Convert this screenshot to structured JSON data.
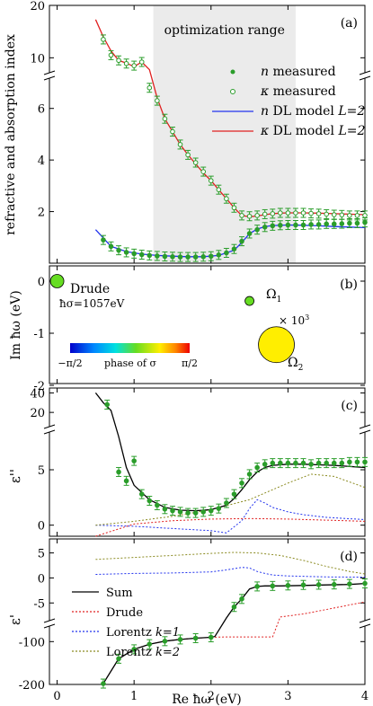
{
  "chart_data": [
    {
      "panel": "(a)",
      "type": "line",
      "ylabel": "refractive and absorption index",
      "annotation": "optimization range",
      "optimization_range_x": [
        1.25,
        3.1
      ],
      "xlim": [
        -0.1,
        4
      ],
      "ylim_upper": [
        8,
        20
      ],
      "ylim_lower": [
        0,
        7
      ],
      "y_ticks_upper": [
        "10",
        "20"
      ],
      "y_ticks_lower": [
        "2",
        "4",
        "6"
      ],
      "legend": {
        "placement": "right",
        "entries": [
          "n measured",
          "κ measured",
          "n DL model L=2",
          "κ DL model L=2"
        ]
      },
      "legend_parts": [
        {
          "sym": "n",
          "text": "measured"
        },
        {
          "sym": "κ",
          "text": "measured"
        },
        {
          "sym": "n",
          "text": "DL model",
          "sub": "L=2"
        },
        {
          "sym": "κ",
          "text": "DL model",
          "sub": "L=2"
        }
      ],
      "series": [
        {
          "name": "n measured",
          "color": "#2a9d2a",
          "x": [
            0.6,
            0.7,
            0.8,
            0.9,
            1.0,
            1.1,
            1.2,
            1.3,
            1.4,
            1.5,
            1.6,
            1.7,
            1.8,
            1.9,
            2.0,
            2.1,
            2.2,
            2.3,
            2.4,
            2.5,
            2.6,
            2.7,
            2.8,
            2.9,
            3.0,
            3.1,
            3.2,
            3.3,
            3.4,
            3.5,
            3.6,
            3.7,
            3.8,
            3.9,
            4.0
          ],
          "y": [
            0.9,
            0.65,
            0.5,
            0.42,
            0.37,
            0.33,
            0.3,
            0.28,
            0.26,
            0.25,
            0.24,
            0.24,
            0.24,
            0.25,
            0.27,
            0.32,
            0.4,
            0.55,
            0.85,
            1.15,
            1.3,
            1.4,
            1.45,
            1.47,
            1.48,
            1.48,
            1.48,
            1.5,
            1.5,
            1.52,
            1.52,
            1.53,
            1.55,
            1.55,
            1.58
          ]
        },
        {
          "name": "κ measured",
          "color": "#2a9d2a",
          "x": [
            0.6,
            0.7,
            0.8,
            0.9,
            1.0,
            1.1,
            1.2,
            1.3,
            1.4,
            1.5,
            1.6,
            1.7,
            1.8,
            1.9,
            2.0,
            2.1,
            2.2,
            2.3,
            2.4,
            2.5,
            2.6,
            2.7,
            2.8,
            2.9,
            3.0,
            3.1,
            3.2,
            3.3,
            3.4,
            3.5,
            3.6,
            3.7,
            3.8,
            3.9,
            4.0
          ],
          "y": [
            13.5,
            10.5,
            9.5,
            8.9,
            8.5,
            7.8,
            6.8,
            6.3,
            5.6,
            5.1,
            4.6,
            4.2,
            3.9,
            3.55,
            3.2,
            2.85,
            2.5,
            2.15,
            1.85,
            1.82,
            1.85,
            1.9,
            1.92,
            1.95,
            1.95,
            1.95,
            1.95,
            1.93,
            1.92,
            1.9,
            1.88,
            1.87,
            1.85,
            1.85,
            1.85
          ]
        },
        {
          "name": "n DL model L=2",
          "color": "#2233ee",
          "x": [
            0.5,
            0.7,
            0.9,
            1.1,
            1.3,
            1.5,
            1.7,
            1.9,
            2.1,
            2.3,
            2.4,
            2.5,
            2.6,
            2.7,
            2.8,
            3.0,
            3.2,
            3.4,
            3.6,
            3.8,
            4.0
          ],
          "y": [
            1.3,
            0.65,
            0.45,
            0.35,
            0.3,
            0.27,
            0.25,
            0.25,
            0.3,
            0.5,
            0.8,
            1.15,
            1.32,
            1.42,
            1.46,
            1.48,
            1.47,
            1.45,
            1.42,
            1.4,
            1.38
          ]
        },
        {
          "name": "κ DL model L=2",
          "color": "#e02020",
          "x": [
            0.5,
            0.6,
            0.7,
            0.8,
            0.9,
            1.0,
            1.1,
            1.2,
            1.3,
            1.4,
            1.5,
            1.6,
            1.7,
            1.8,
            1.9,
            2.0,
            2.1,
            2.2,
            2.3,
            2.4,
            2.5,
            2.6,
            2.7,
            2.8,
            2.9,
            3.0,
            3.2,
            3.4,
            3.6,
            3.8,
            4.0
          ],
          "y": [
            17.3,
            14.0,
            11.3,
            9.5,
            9.0,
            8.3,
            7.8,
            7.5,
            6.4,
            5.6,
            5.1,
            4.6,
            4.2,
            3.85,
            3.5,
            3.2,
            2.85,
            2.5,
            2.15,
            1.85,
            1.8,
            1.83,
            1.88,
            1.92,
            1.94,
            1.95,
            1.95,
            1.94,
            1.92,
            1.9,
            1.88
          ]
        }
      ]
    },
    {
      "panel": "(b)",
      "type": "scatter",
      "ylabel": "Im ħω (eV)",
      "xlim": [
        -0.1,
        4
      ],
      "ylim": [
        -2,
        0.35
      ],
      "y_ticks": [
        "0",
        "-1",
        "-2"
      ],
      "labels": {
        "drude": "Drude",
        "drude_sigma": "ħσ=1057eV",
        "omega1": "Ω",
        "omega1_sub": "1",
        "omega2": "Ω",
        "omega2_sub": "2",
        "scale": "× 10",
        "scale_exp": "3"
      },
      "colorbar": {
        "min_label": "−π/2",
        "title": "phase of σ",
        "max_label": "π/2"
      },
      "points": [
        {
          "name": "Drude",
          "x": 0.0,
          "y": 0.0,
          "color": "#66dd22",
          "size": 0.35
        },
        {
          "name": "Ω1",
          "x": 2.5,
          "y": -0.38,
          "color": "#66dd22",
          "size": 0.25
        },
        {
          "name": "Ω2",
          "x": 2.85,
          "y": -1.22,
          "color": "#ffee00",
          "size": 1.0
        }
      ]
    },
    {
      "panel": "(c)",
      "type": "line",
      "ylabel": "ε''",
      "xlim": [
        -0.1,
        4
      ],
      "ylim_upper": [
        10,
        45
      ],
      "ylim_lower": [
        -1,
        8
      ],
      "y_ticks_upper": [
        "20",
        "40"
      ],
      "y_ticks_lower": [
        "0",
        "5"
      ],
      "series": [
        {
          "name": "measured",
          "color": "#2a9d2a",
          "x": [
            0.65,
            0.8,
            0.9,
            1.0,
            1.1,
            1.2,
            1.3,
            1.4,
            1.5,
            1.6,
            1.7,
            1.8,
            1.9,
            2.0,
            2.1,
            2.2,
            2.3,
            2.4,
            2.5,
            2.6,
            2.7,
            2.8,
            2.9,
            3.0,
            3.1,
            3.2,
            3.3,
            3.4,
            3.5,
            3.6,
            3.7,
            3.8,
            3.9,
            4.0
          ],
          "y": [
            28,
            4.8,
            4.0,
            5.8,
            2.8,
            2.2,
            1.8,
            1.45,
            1.3,
            1.2,
            1.1,
            1.1,
            1.2,
            1.3,
            1.5,
            2.0,
            2.8,
            3.8,
            4.6,
            5.2,
            5.5,
            5.6,
            5.6,
            5.6,
            5.6,
            5.6,
            5.5,
            5.6,
            5.6,
            5.6,
            5.6,
            5.7,
            5.7,
            5.7
          ]
        },
        {
          "name": "Sum",
          "color": "#000000",
          "x": [
            0.5,
            0.6,
            0.7,
            0.8,
            0.9,
            1.0,
            1.2,
            1.4,
            1.6,
            1.8,
            2.0,
            2.2,
            2.3,
            2.4,
            2.5,
            2.6,
            2.7,
            2.8,
            3.0,
            3.2,
            3.4,
            3.6,
            3.8,
            4.0
          ],
          "y": [
            40,
            30,
            22,
            8,
            5.2,
            3.6,
            2.3,
            1.6,
            1.35,
            1.3,
            1.4,
            1.8,
            2.4,
            3.2,
            4.1,
            4.8,
            5.2,
            5.4,
            5.5,
            5.5,
            5.45,
            5.4,
            5.3,
            5.2
          ]
        },
        {
          "name": "Drude",
          "color": "#e02020",
          "x": [
            0.5,
            1.0,
            1.5,
            2.0,
            2.5,
            3.0,
            3.5,
            4.0
          ],
          "y": [
            -1,
            0.1,
            0.4,
            0.55,
            0.6,
            0.55,
            0.45,
            0.35
          ]
        },
        {
          "name": "Lorentz k=1",
          "color": "#2233ee",
          "x": [
            0.5,
            1.0,
            1.5,
            2.0,
            2.2,
            2.4,
            2.5,
            2.6,
            2.7,
            2.8,
            3.0,
            3.2,
            3.5,
            4.0
          ],
          "y": [
            0.0,
            -0.1,
            -0.3,
            -0.5,
            -0.7,
            0.4,
            1.5,
            2.3,
            2.0,
            1.6,
            1.2,
            0.95,
            0.7,
            0.5
          ]
        },
        {
          "name": "Lorentz k=2",
          "color": "#8b8b22",
          "x": [
            0.5,
            1.0,
            1.5,
            2.0,
            2.5,
            3.0,
            3.3,
            3.6,
            4.0
          ],
          "y": [
            0.0,
            0.35,
            0.8,
            1.4,
            2.3,
            3.8,
            4.6,
            4.4,
            3.4
          ]
        }
      ]
    },
    {
      "panel": "(d)",
      "type": "line",
      "ylabel": "ε'",
      "xlabel": "Re ħω (eV)",
      "xlim": [
        -0.1,
        4
      ],
      "x_ticks": [
        "0",
        "1",
        "2",
        "3",
        "4"
      ],
      "ylim_upper": [
        -8,
        6
      ],
      "ylim_lower": [
        -200,
        -70
      ],
      "y_ticks_upper": [
        "5",
        "0",
        "-5"
      ],
      "y_ticks_lower": [
        "-100",
        "-200"
      ],
      "legend": {
        "placement": "bottom-left",
        "entries": [
          "Sum",
          "Drude",
          "Lorentz k=1",
          "Lorentz k=2"
        ]
      },
      "legend_parts": [
        {
          "text": "Sum"
        },
        {
          "text": "Drude"
        },
        {
          "text": "Lorentz",
          "sub": "k=1"
        },
        {
          "text": "Lorentz",
          "sub": "k=2"
        }
      ],
      "series": [
        {
          "name": "measured",
          "color": "#2a9d2a",
          "x": [
            0.6,
            0.8,
            1.0,
            1.2,
            1.4,
            1.6,
            1.8,
            2.0,
            2.3,
            2.4,
            2.6,
            2.8,
            3.0,
            3.2,
            3.4,
            3.6,
            3.8,
            4.0
          ],
          "y": [
            -198,
            -140,
            -118,
            -106,
            -99,
            -95,
            -92,
            -90,
            -5.8,
            -4.2,
            -1.7,
            -1.6,
            -1.5,
            -1.4,
            -1.35,
            -1.3,
            -1.2,
            -1.1
          ]
        },
        {
          "name": "Sum",
          "color": "#000000",
          "x": [
            0.6,
            0.8,
            1.0,
            1.2,
            1.4,
            1.6,
            1.8,
            2.0,
            2.05,
            2.2,
            2.3,
            2.4,
            2.5,
            2.6,
            2.7,
            2.9,
            3.2,
            3.5,
            3.8,
            4.0
          ],
          "y": [
            -198,
            -140,
            -118,
            -106,
            -99,
            -95,
            -92,
            -90,
            -88,
            -8,
            -5.8,
            -4.2,
            -2.2,
            -1.7,
            -1.6,
            -1.6,
            -1.5,
            -1.4,
            -1.3,
            -1.1
          ]
        },
        {
          "name": "Drude",
          "color": "#e02020",
          "x": [
            0.6,
            0.8,
            1.0,
            1.2,
            1.4,
            1.6,
            1.8,
            2.0,
            2.2,
            2.4,
            2.6,
            2.8,
            2.9,
            3.0,
            3.2,
            3.4,
            3.6,
            3.8,
            4.0
          ],
          "y": [
            -198,
            -140,
            -118,
            -106,
            -99,
            -95,
            -92,
            -90,
            -89,
            -89,
            -89,
            -89,
            -7.8,
            -7.6,
            -7.2,
            -6.6,
            -6.0,
            -5.4,
            -4.8
          ]
        },
        {
          "name": "Lorentz k=1",
          "color": "#2233ee",
          "x": [
            0.5,
            1.0,
            1.5,
            2.0,
            2.2,
            2.4,
            2.5,
            2.6,
            2.7,
            2.8,
            3.0,
            3.5,
            4.0
          ],
          "y": [
            0.7,
            0.9,
            1.0,
            1.2,
            1.6,
            2.1,
            2.0,
            1.3,
            0.9,
            0.6,
            0.4,
            0.2,
            0.15
          ]
        },
        {
          "name": "Lorentz k=2",
          "color": "#8b8b22",
          "x": [
            0.5,
            1.0,
            1.5,
            2.0,
            2.3,
            2.6,
            2.9,
            3.2,
            3.5,
            3.8,
            4.0
          ],
          "y": [
            3.7,
            4.1,
            4.5,
            4.9,
            5.1,
            5.0,
            4.5,
            3.5,
            2.3,
            1.3,
            0.8
          ]
        }
      ]
    }
  ]
}
